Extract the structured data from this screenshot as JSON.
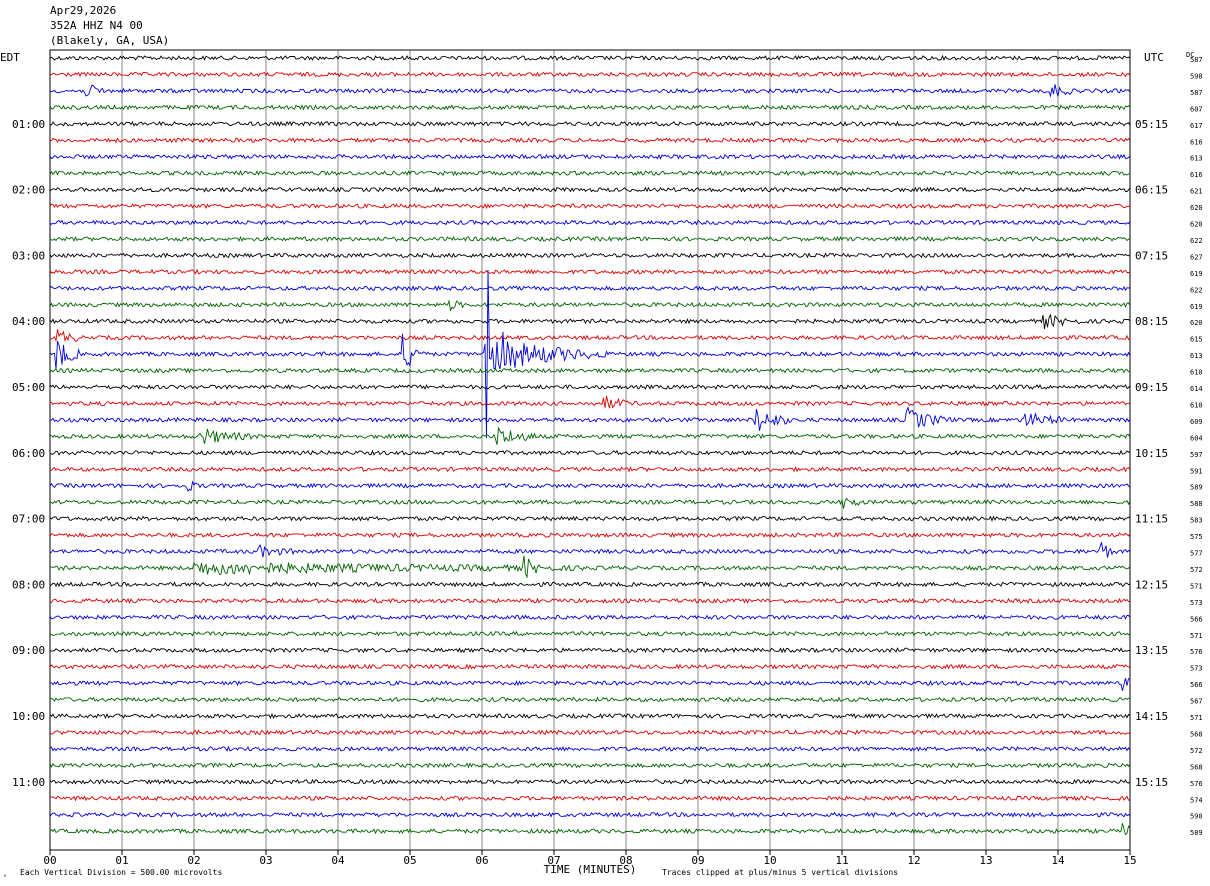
{
  "header": {
    "date": "Apr29,2026",
    "station": "352A HHZ N4 00",
    "location": "(Blakely, GA, USA)"
  },
  "labels": {
    "left_tz": "EDT",
    "right_tz": "UTC",
    "dc": "DC",
    "xlabel": "TIME (MINUTES)",
    "vertical_division": "Each Vertical Division =  500.00 microvolts",
    "clip_note": "Traces clipped at plus/minus 5 vertical divisions"
  },
  "colors": {
    "trace_cycle": [
      "#000000",
      "#dd0000",
      "#0000dd",
      "#006400"
    ],
    "grid": "#000000",
    "background": "#ffffff"
  },
  "chart_data": {
    "type": "line",
    "subtype": "helicorder",
    "x_ticks": [
      "00",
      "01",
      "02",
      "03",
      "04",
      "05",
      "06",
      "07",
      "08",
      "09",
      "10",
      "11",
      "12",
      "13",
      "14",
      "15"
    ],
    "xlim": [
      0,
      15
    ],
    "left_hour_labels": [
      "01:00",
      "02:00",
      "03:00",
      "04:00",
      "05:00",
      "06:00",
      "07:00",
      "08:00",
      "09:00",
      "10:00",
      "11:00"
    ],
    "right_hour_labels": [
      "05:15",
      "06:15",
      "07:15",
      "08:15",
      "09:15",
      "10:15",
      "11:15",
      "12:15",
      "13:15",
      "14:15",
      "15:15"
    ],
    "dc_offsets": [
      "587",
      "598",
      "587",
      "607",
      "617",
      "616",
      "613",
      "616",
      "621",
      "620",
      "620",
      "622",
      "627",
      "619",
      "622",
      "619",
      "620",
      "615",
      "613",
      "610",
      "614",
      "610",
      "609",
      "604",
      "597",
      "591",
      "589",
      "588",
      "583",
      "575",
      "577",
      "572",
      "571",
      "573",
      "566",
      "571",
      "576",
      "573",
      "566",
      "567",
      "571",
      "568",
      "572",
      "568",
      "576",
      "574",
      "590",
      "589"
    ],
    "events": [
      {
        "trace": 2,
        "minute": 0.5,
        "amp": 2.0,
        "dur": 0.3
      },
      {
        "trace": 2,
        "minute": 13.9,
        "amp": 2.5,
        "dur": 0.3
      },
      {
        "trace": 15,
        "minute": 5.55,
        "amp": 1.5,
        "dur": 0.2
      },
      {
        "trace": 16,
        "minute": 13.8,
        "amp": 2.0,
        "dur": 0.5
      },
      {
        "trace": 17,
        "minute": 0.1,
        "amp": 2.5,
        "dur": 0.3
      },
      {
        "trace": 18,
        "minute": 0.1,
        "amp": 5.0,
        "dur": 0.3
      },
      {
        "trace": 18,
        "minute": 4.9,
        "amp": 6.0,
        "dur": 0.3
      },
      {
        "trace": 18,
        "minute": 6.05,
        "amp": 12.0,
        "dur": 0.25
      },
      {
        "trace": 18,
        "minute": 6.25,
        "amp": 5.0,
        "dur": 1.5
      },
      {
        "trace": 21,
        "minute": 7.7,
        "amp": 2.0,
        "dur": 0.4
      },
      {
        "trace": 22,
        "minute": 9.8,
        "amp": 4.0,
        "dur": 0.5
      },
      {
        "trace": 22,
        "minute": 11.9,
        "amp": 3.5,
        "dur": 0.6
      },
      {
        "trace": 22,
        "minute": 13.5,
        "amp": 2.5,
        "dur": 0.6
      },
      {
        "trace": 23,
        "minute": 2.1,
        "amp": 2.5,
        "dur": 0.7
      },
      {
        "trace": 23,
        "minute": 6.2,
        "amp": 3.0,
        "dur": 0.6
      },
      {
        "trace": 26,
        "minute": 1.9,
        "amp": 1.5,
        "dur": 0.2
      },
      {
        "trace": 27,
        "minute": 11.0,
        "amp": 2.0,
        "dur": 0.3
      },
      {
        "trace": 30,
        "minute": 2.9,
        "amp": 1.5,
        "dur": 0.5
      },
      {
        "trace": 30,
        "minute": 14.6,
        "amp": 3.0,
        "dur": 0.2
      },
      {
        "trace": 31,
        "minute": 2.0,
        "amp": 1.8,
        "dur": 5.5
      },
      {
        "trace": 31,
        "minute": 6.6,
        "amp": 3.0,
        "dur": 0.2
      },
      {
        "trace": 38,
        "minute": 14.9,
        "amp": 2.0,
        "dur": 0.5
      },
      {
        "trace": 47,
        "minute": 14.9,
        "amp": 2.0,
        "dur": 0.3
      }
    ]
  }
}
